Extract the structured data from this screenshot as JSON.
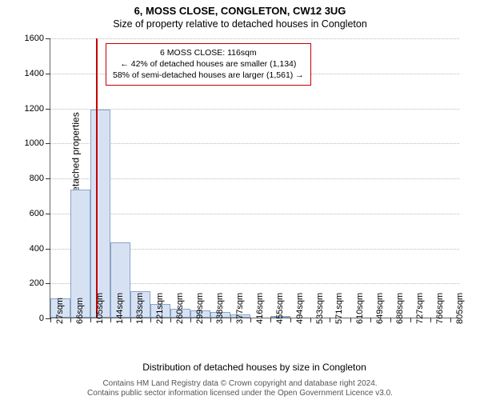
{
  "title": "6, MOSS CLOSE, CONGLETON, CW12 3UG",
  "subtitle": "Size of property relative to detached houses in Congleton",
  "ylabel": "Number of detached properties",
  "xlabel": "Distribution of detached houses by size in Congleton",
  "footer_line1": "Contains HM Land Registry data © Crown copyright and database right 2024.",
  "footer_line2": "Contains public sector information licensed under the Open Government Licence v3.0.",
  "annotation": {
    "line1": "6 MOSS CLOSE: 116sqm",
    "line2": "← 42% of detached houses are smaller (1,134)",
    "line3": "58% of semi-detached houses are larger (1,561) →"
  },
  "chart": {
    "type": "histogram",
    "ylim": [
      0,
      1600
    ],
    "yticks": [
      0,
      200,
      400,
      600,
      800,
      1000,
      1200,
      1400,
      1600
    ],
    "x_range": [
      27,
      824
    ],
    "x_tick_labels": [
      "27sqm",
      "66sqm",
      "105sqm",
      "144sqm",
      "183sqm",
      "221sqm",
      "260sqm",
      "299sqm",
      "338sqm",
      "377sqm",
      "416sqm",
      "455sqm",
      "494sqm",
      "533sqm",
      "571sqm",
      "610sqm",
      "649sqm",
      "688sqm",
      "727sqm",
      "766sqm",
      "805sqm"
    ],
    "x_tick_positions": [
      27,
      66,
      105,
      144,
      183,
      221,
      260,
      299,
      338,
      377,
      416,
      455,
      494,
      533,
      571,
      610,
      649,
      688,
      727,
      766,
      805
    ],
    "bar_left_edges": [
      27,
      66,
      105,
      144,
      183,
      221,
      260,
      299,
      338,
      377,
      416,
      455,
      494,
      533,
      571,
      610,
      649,
      688,
      727,
      766,
      805
    ],
    "bar_width_sqm": 39,
    "bar_heights": [
      110,
      730,
      1190,
      430,
      150,
      80,
      50,
      40,
      30,
      18,
      0,
      10,
      0,
      0,
      0,
      0,
      0,
      0,
      0,
      0,
      0
    ],
    "marker_x": 116,
    "bar_fill": "#d6e2f3",
    "bar_stroke": "#8aa3c6",
    "marker_color": "#c40000",
    "grid_color": "#bbbbbb",
    "background": "#ffffff",
    "title_fontsize": 13,
    "label_fontsize": 12,
    "tick_fontsize": 11
  }
}
